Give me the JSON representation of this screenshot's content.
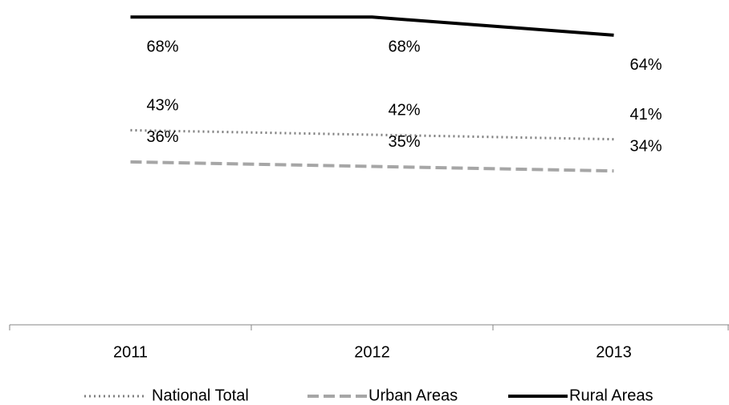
{
  "chart_data": {
    "type": "line",
    "categories": [
      "2011",
      "2012",
      "2013"
    ],
    "series": [
      {
        "name": "National Total",
        "color": "#7f7f7f",
        "style": "dotted",
        "values": [
          43,
          42,
          41
        ],
        "value_labels": [
          "43%",
          "42%",
          "41%"
        ]
      },
      {
        "name": "Urban Areas",
        "color": "#a6a6a6",
        "style": "dashed",
        "values": [
          36,
          35,
          34
        ],
        "value_labels": [
          "36%",
          "35%",
          "34%"
        ]
      },
      {
        "name": "Rural Areas",
        "color": "#000000",
        "style": "solid",
        "values": [
          68,
          68,
          64
        ],
        "value_labels": [
          "68%",
          "68%",
          "64%"
        ]
      }
    ],
    "ylim": [
      0,
      70
    ],
    "legend": "bottom"
  }
}
